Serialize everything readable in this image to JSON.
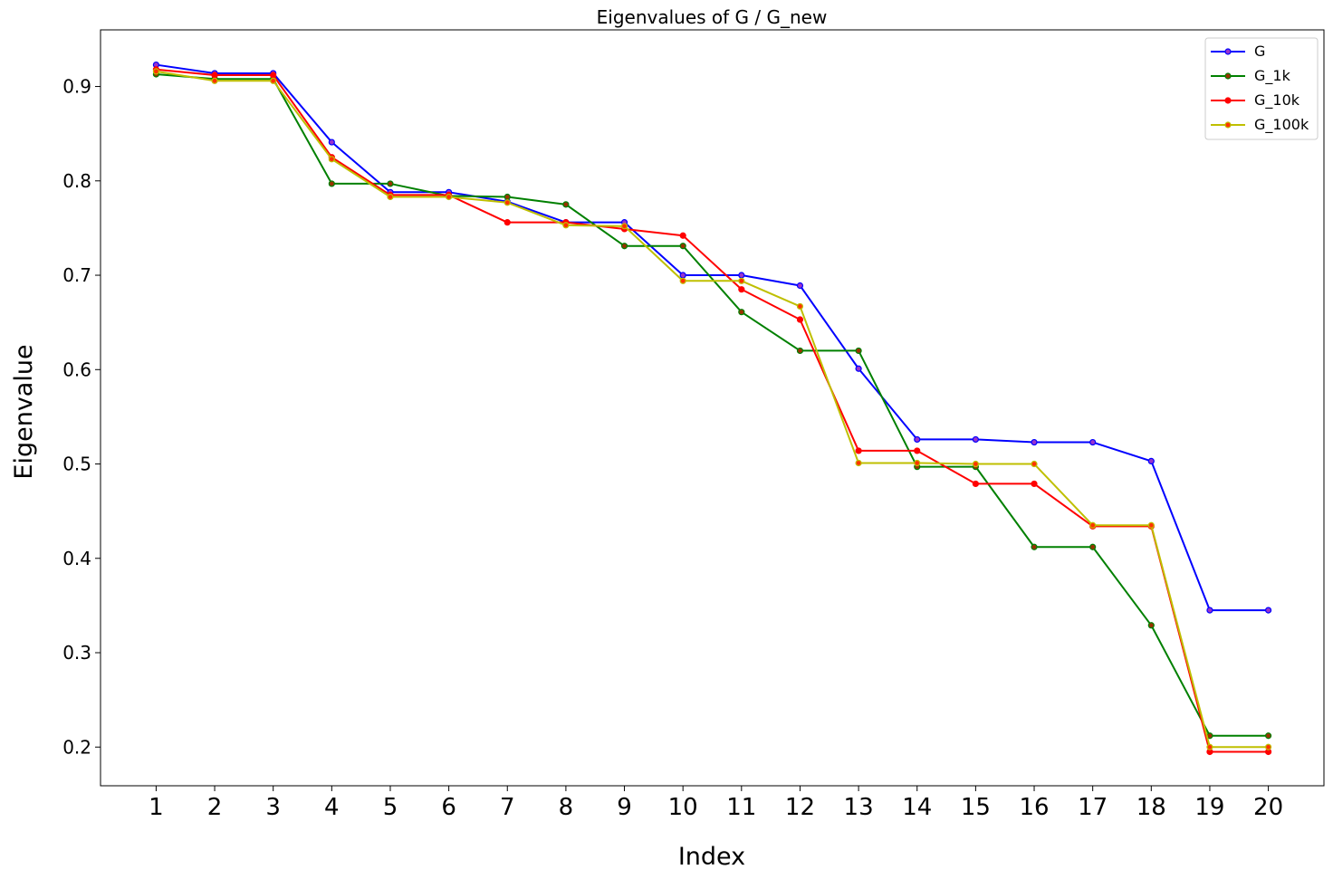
{
  "chart_data": {
    "type": "line",
    "title": "Eigenvalues of G / G_new",
    "xlabel": "Index",
    "ylabel": "Eigenvalue",
    "x": [
      1,
      2,
      3,
      4,
      5,
      6,
      7,
      8,
      9,
      10,
      11,
      12,
      13,
      14,
      15,
      16,
      17,
      18,
      19,
      20
    ],
    "xticks": [
      "1",
      "2",
      "3",
      "4",
      "5",
      "6",
      "7",
      "8",
      "9",
      "10",
      "11",
      "12",
      "13",
      "14",
      "15",
      "16",
      "17",
      "18",
      "19",
      "20"
    ],
    "yticks": [
      "0.2",
      "0.3",
      "0.4",
      "0.5",
      "0.6",
      "0.7",
      "0.8",
      "0.9"
    ],
    "ytick_values": [
      0.2,
      0.3,
      0.4,
      0.5,
      0.6,
      0.7,
      0.8,
      0.9
    ],
    "xlim": [
      0.05,
      20.95
    ],
    "ylim": [
      0.159,
      0.96
    ],
    "grid": false,
    "legend_position": "top-right",
    "series": [
      {
        "name": "G",
        "color": "#0000ff",
        "marker_face": "#9933cc",
        "values": [
          0.923,
          0.914,
          0.914,
          0.841,
          0.788,
          0.788,
          0.778,
          0.756,
          0.756,
          0.7,
          0.7,
          0.689,
          0.601,
          0.526,
          0.526,
          0.523,
          0.523,
          0.503,
          0.345,
          0.345
        ]
      },
      {
        "name": "G_1k",
        "color": "#008000",
        "marker_face": "#993300",
        "values": [
          0.913,
          0.908,
          0.908,
          0.797,
          0.797,
          0.784,
          0.783,
          0.775,
          0.731,
          0.731,
          0.661,
          0.62,
          0.62,
          0.497,
          0.497,
          0.412,
          0.412,
          0.329,
          0.212,
          0.212
        ]
      },
      {
        "name": "G_10k",
        "color": "#ff0000",
        "marker_face": "#ff0000",
        "values": [
          0.918,
          0.912,
          0.912,
          0.825,
          0.785,
          0.785,
          0.756,
          0.756,
          0.749,
          0.742,
          0.685,
          0.653,
          0.514,
          0.514,
          0.479,
          0.479,
          0.434,
          0.434,
          0.195,
          0.195
        ]
      },
      {
        "name": "G_100k",
        "color": "#bfbf00",
        "marker_face": "#ff3300",
        "values": [
          0.916,
          0.906,
          0.906,
          0.823,
          0.783,
          0.783,
          0.777,
          0.753,
          0.752,
          0.694,
          0.694,
          0.667,
          0.501,
          0.501,
          0.5,
          0.5,
          0.435,
          0.435,
          0.2,
          0.2
        ]
      }
    ]
  }
}
